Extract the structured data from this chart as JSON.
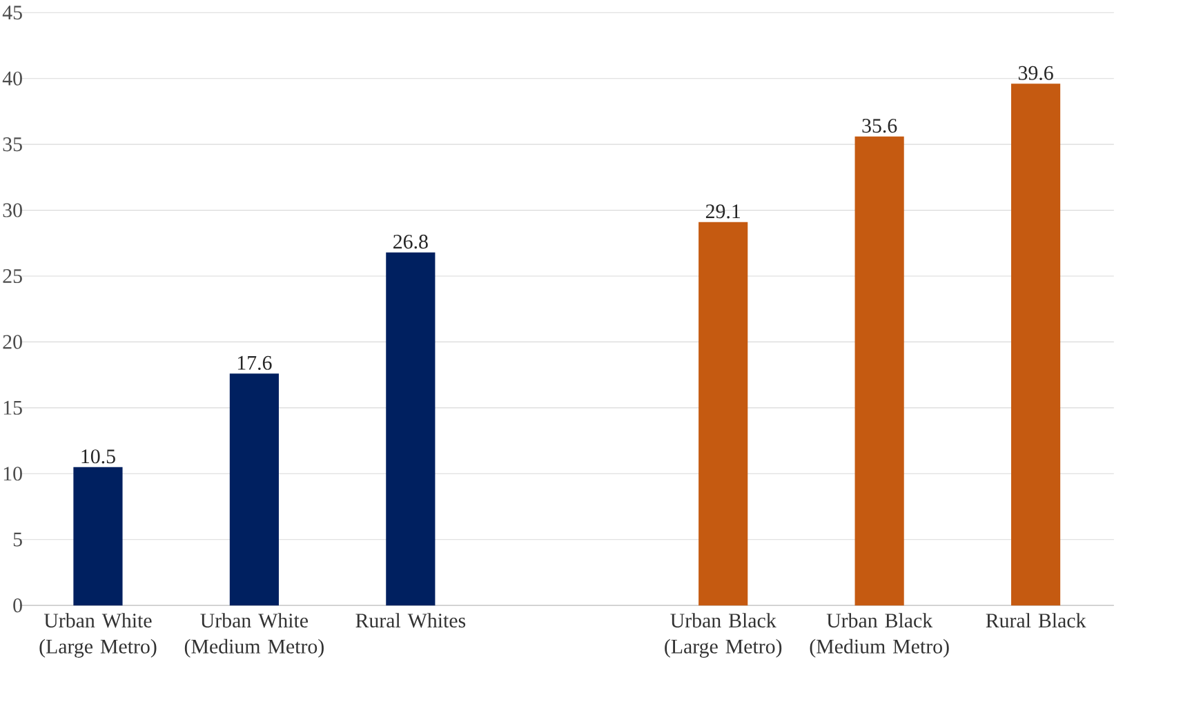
{
  "chart_data": {
    "type": "bar",
    "categories": [
      "Urban White (Large Metro)",
      "Urban White (Medium Metro)",
      "Rural Whites",
      null,
      "Urban Black (Large Metro)",
      "Urban Black (Medium Metro)",
      "Rural Black"
    ],
    "values": [
      10.5,
      17.6,
      26.8,
      null,
      29.1,
      35.6,
      39.6
    ],
    "colors": [
      "#002060",
      "#002060",
      "#002060",
      null,
      "#c55a11",
      "#c55a11",
      "#c55a11"
    ],
    "ylim": [
      0,
      45
    ],
    "yticks": [
      0,
      5,
      10,
      15,
      20,
      25,
      30,
      35,
      40,
      45
    ],
    "grid": "y",
    "data_labels": true
  }
}
